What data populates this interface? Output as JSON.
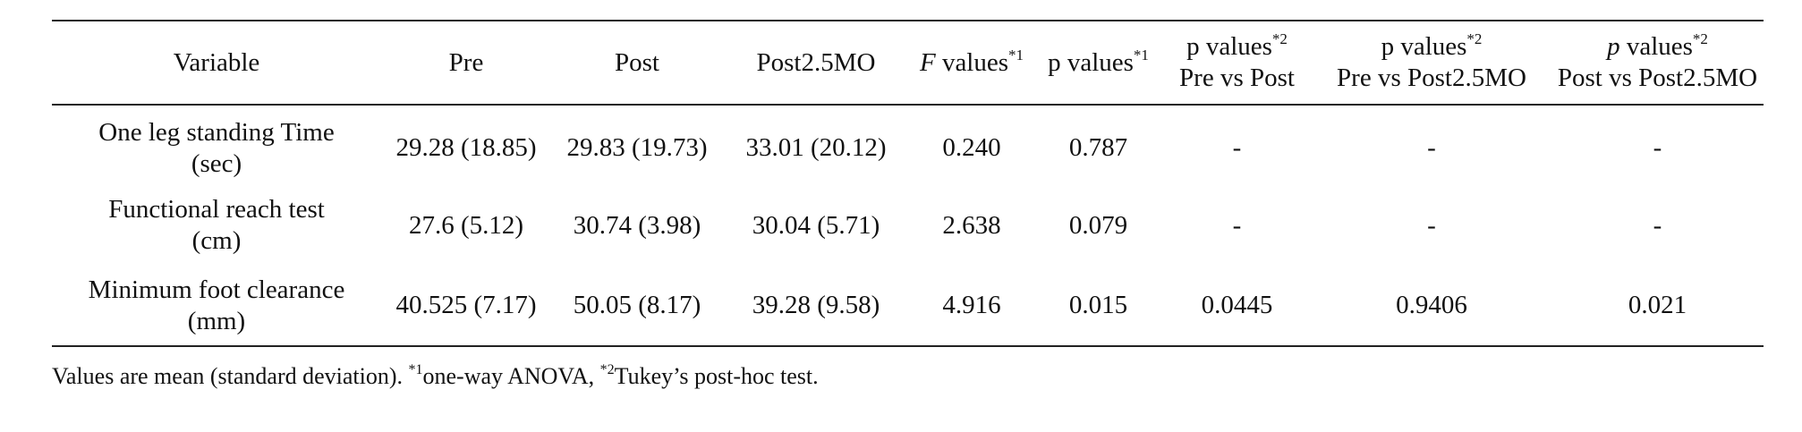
{
  "table": {
    "headers": {
      "variable": "Variable",
      "pre": "Pre",
      "post": "Post",
      "post25mo": "Post2.5MO",
      "f_values": {
        "letter": "F",
        "rest": " values",
        "sup": "*1"
      },
      "p_values": {
        "text": "p values",
        "sup": "*1"
      },
      "pre_vs_post": {
        "text": "p values",
        "sup": "*2",
        "sub": "Pre vs Post"
      },
      "pre_vs_post25": {
        "text": "p values",
        "sup": "*2",
        "sub": "Pre vs Post2.5MO"
      },
      "post_vs_post25": {
        "letter": "p",
        "rest": " values",
        "sup": "*2",
        "sub": "Post vs Post2.5MO"
      }
    },
    "rows": [
      {
        "variable_line1": "One leg standing Time",
        "variable_line2": "(sec)",
        "pre": "29.28 (18.85)",
        "post": "29.83 (19.73)",
        "post25mo": "33.01 (20.12)",
        "f": "0.240",
        "p": "0.787",
        "p_pre_post": "-",
        "p_pre_post25": "-",
        "p_post_post25": "-"
      },
      {
        "variable_line1": "Functional reach test",
        "variable_line2": "(cm)",
        "pre": "27.6 (5.12)",
        "post": "30.74 (3.98)",
        "post25mo": "30.04 (5.71)",
        "f": "2.638",
        "p": "0.079",
        "p_pre_post": "-",
        "p_pre_post25": "-",
        "p_post_post25": "-"
      },
      {
        "variable_line1": "Minimum foot clearance",
        "variable_line2": "(mm)",
        "pre": "40.525 (7.17)",
        "post": "50.05 (8.17)",
        "post25mo": "39.28 (9.58)",
        "f": "4.916",
        "p": "0.015",
        "p_pre_post": "0.0445",
        "p_pre_post25": "0.9406",
        "p_post_post25": "0.021"
      }
    ]
  },
  "footnote": {
    "part1": "Values are mean (standard deviation). ",
    "sup1": "*1",
    "part2": "one-way ANOVA, ",
    "sup2": "*2",
    "part3": "Tukey’s post-hoc test."
  }
}
